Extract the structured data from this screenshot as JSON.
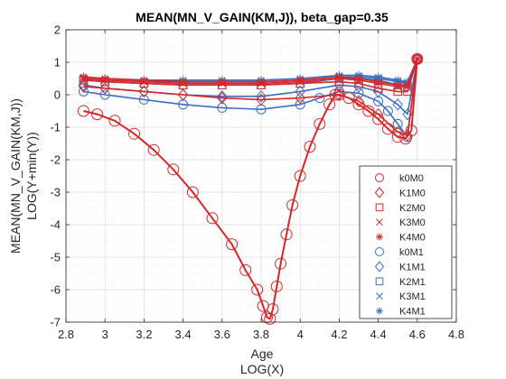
{
  "chart_data": {
    "type": "line",
    "title": "MEAN(MN_V_GAIN(KM,J)), beta_gap=0.35",
    "xlabel": [
      "Age",
      "LOG(X)"
    ],
    "ylabel": [
      "MEAN(MN_V_GAIN(KM,J))",
      "LOG(Y+min(Y))"
    ],
    "xlim": [
      2.8,
      4.8
    ],
    "ylim": [
      -7,
      2
    ],
    "xticks": [
      2.8,
      3,
      3.2,
      3.4,
      3.6,
      3.8,
      4,
      4.2,
      4.4,
      4.6,
      4.8
    ],
    "xtick_labels": [
      "2.8",
      "3",
      "3.2",
      "3.4",
      "3.6",
      "3.8",
      "4",
      "4.2",
      "4.4",
      "4.6",
      "4.8"
    ],
    "yticks": [
      2,
      1,
      0,
      -1,
      -2,
      -3,
      -4,
      -5,
      -6,
      -7
    ],
    "ytick_labels": [
      "2",
      "1",
      "0",
      "-1",
      "-2",
      "-3",
      "-4",
      "-5",
      "-6",
      "-7"
    ],
    "grid": true,
    "minor_grid": true,
    "legend_position": "lower-right",
    "colors": {
      "M0": "#d62728",
      "M1": "#3a6fc4"
    },
    "series": [
      {
        "name": "k0M0",
        "marker": "circle",
        "color": "#d62728",
        "x": [
          2.89,
          2.96,
          3.05,
          3.15,
          3.25,
          3.35,
          3.45,
          3.55,
          3.65,
          3.72,
          3.78,
          3.81,
          3.83,
          3.845,
          3.86,
          3.88,
          3.9,
          3.93,
          3.96,
          4.0,
          4.05,
          4.1,
          4.15,
          4.18,
          4.2,
          4.25,
          4.3,
          4.35,
          4.4,
          4.45,
          4.5,
          4.54,
          4.57,
          4.6
        ],
        "y": [
          -0.5,
          -0.6,
          -0.8,
          -1.2,
          -1.7,
          -2.3,
          -3.0,
          -3.8,
          -4.6,
          -5.4,
          -6.0,
          -6.5,
          -6.85,
          -6.9,
          -6.6,
          -5.9,
          -5.2,
          -4.3,
          -3.4,
          -2.5,
          -1.6,
          -0.9,
          -0.3,
          0.0,
          0.0,
          -0.1,
          -0.3,
          -0.5,
          -0.75,
          -1.05,
          -1.3,
          -1.35,
          -1.1,
          1.1
        ]
      },
      {
        "name": "K1M0",
        "marker": "diamond",
        "color": "#d62728",
        "x": [
          2.89,
          3.0,
          3.2,
          3.4,
          3.6,
          3.8,
          4.0,
          4.2,
          4.3,
          4.4,
          4.5,
          4.55,
          4.6
        ],
        "y": [
          0.25,
          0.2,
          0.1,
          0.0,
          -0.1,
          -0.15,
          -0.1,
          0.0,
          -0.2,
          -0.6,
          -1.15,
          -1.25,
          1.1
        ]
      },
      {
        "name": "K2M0",
        "marker": "square",
        "color": "#d62728",
        "x": [
          2.89,
          3.0,
          3.2,
          3.4,
          3.6,
          3.8,
          4.0,
          4.2,
          4.3,
          4.4,
          4.5,
          4.55,
          4.6
        ],
        "y": [
          0.45,
          0.4,
          0.35,
          0.3,
          0.3,
          0.3,
          0.35,
          0.4,
          0.35,
          0.2,
          0.1,
          0.1,
          1.1
        ]
      },
      {
        "name": "K3M0",
        "marker": "x",
        "color": "#d62728",
        "x": [
          2.89,
          3.0,
          3.2,
          3.4,
          3.6,
          3.8,
          4.0,
          4.2,
          4.3,
          4.4,
          4.5,
          4.55,
          4.6
        ],
        "y": [
          0.5,
          0.45,
          0.4,
          0.35,
          0.35,
          0.35,
          0.4,
          0.5,
          0.45,
          0.35,
          0.25,
          0.25,
          1.1
        ]
      },
      {
        "name": "K4M0",
        "marker": "asterisk",
        "color": "#d62728",
        "x": [
          2.89,
          3.0,
          3.2,
          3.4,
          3.6,
          3.8,
          4.0,
          4.2,
          4.3,
          4.4,
          4.5,
          4.55,
          4.6
        ],
        "y": [
          0.55,
          0.5,
          0.45,
          0.4,
          0.4,
          0.4,
          0.45,
          0.55,
          0.5,
          0.4,
          0.3,
          0.3,
          1.1
        ]
      },
      {
        "name": "k0M1",
        "marker": "circle",
        "color": "#3a6fc4",
        "x": [
          2.89,
          3.0,
          3.2,
          3.4,
          3.6,
          3.8,
          4.0,
          4.1,
          4.2,
          4.3,
          4.4,
          4.45,
          4.5,
          4.55,
          4.6
        ],
        "y": [
          0.1,
          0.0,
          -0.15,
          -0.3,
          -0.4,
          -0.45,
          -0.3,
          -0.1,
          0.1,
          0.05,
          -0.2,
          -0.5,
          -0.9,
          -1.3,
          1.1
        ]
      },
      {
        "name": "K1M1",
        "marker": "diamond",
        "color": "#3a6fc4",
        "x": [
          2.89,
          3.0,
          3.2,
          3.4,
          3.6,
          3.8,
          4.0,
          4.2,
          4.3,
          4.4,
          4.5,
          4.55,
          4.6
        ],
        "y": [
          0.3,
          0.2,
          0.1,
          0.0,
          -0.05,
          -0.05,
          0.1,
          0.3,
          0.25,
          0.1,
          -0.3,
          -0.6,
          1.1
        ]
      },
      {
        "name": "K2M1",
        "marker": "square",
        "color": "#3a6fc4",
        "x": [
          2.89,
          3.0,
          3.2,
          3.4,
          3.6,
          3.8,
          4.0,
          4.2,
          4.3,
          4.4,
          4.5,
          4.55,
          4.6
        ],
        "y": [
          0.45,
          0.4,
          0.35,
          0.3,
          0.3,
          0.3,
          0.35,
          0.5,
          0.5,
          0.45,
          0.3,
          0.25,
          1.1
        ]
      },
      {
        "name": "K3M1",
        "marker": "x",
        "color": "#3a6fc4",
        "x": [
          2.89,
          3.0,
          3.2,
          3.4,
          3.6,
          3.8,
          4.0,
          4.2,
          4.3,
          4.4,
          4.5,
          4.55,
          4.6
        ],
        "y": [
          0.5,
          0.45,
          0.4,
          0.4,
          0.4,
          0.4,
          0.45,
          0.55,
          0.55,
          0.5,
          0.4,
          0.35,
          1.1
        ]
      },
      {
        "name": "K4M1",
        "marker": "asterisk",
        "color": "#3a6fc4",
        "x": [
          2.89,
          3.0,
          3.2,
          3.4,
          3.6,
          3.8,
          4.0,
          4.2,
          4.3,
          4.4,
          4.5,
          4.55,
          4.6
        ],
        "y": [
          0.55,
          0.5,
          0.45,
          0.45,
          0.45,
          0.45,
          0.5,
          0.6,
          0.6,
          0.55,
          0.45,
          0.4,
          1.1
        ]
      }
    ]
  }
}
